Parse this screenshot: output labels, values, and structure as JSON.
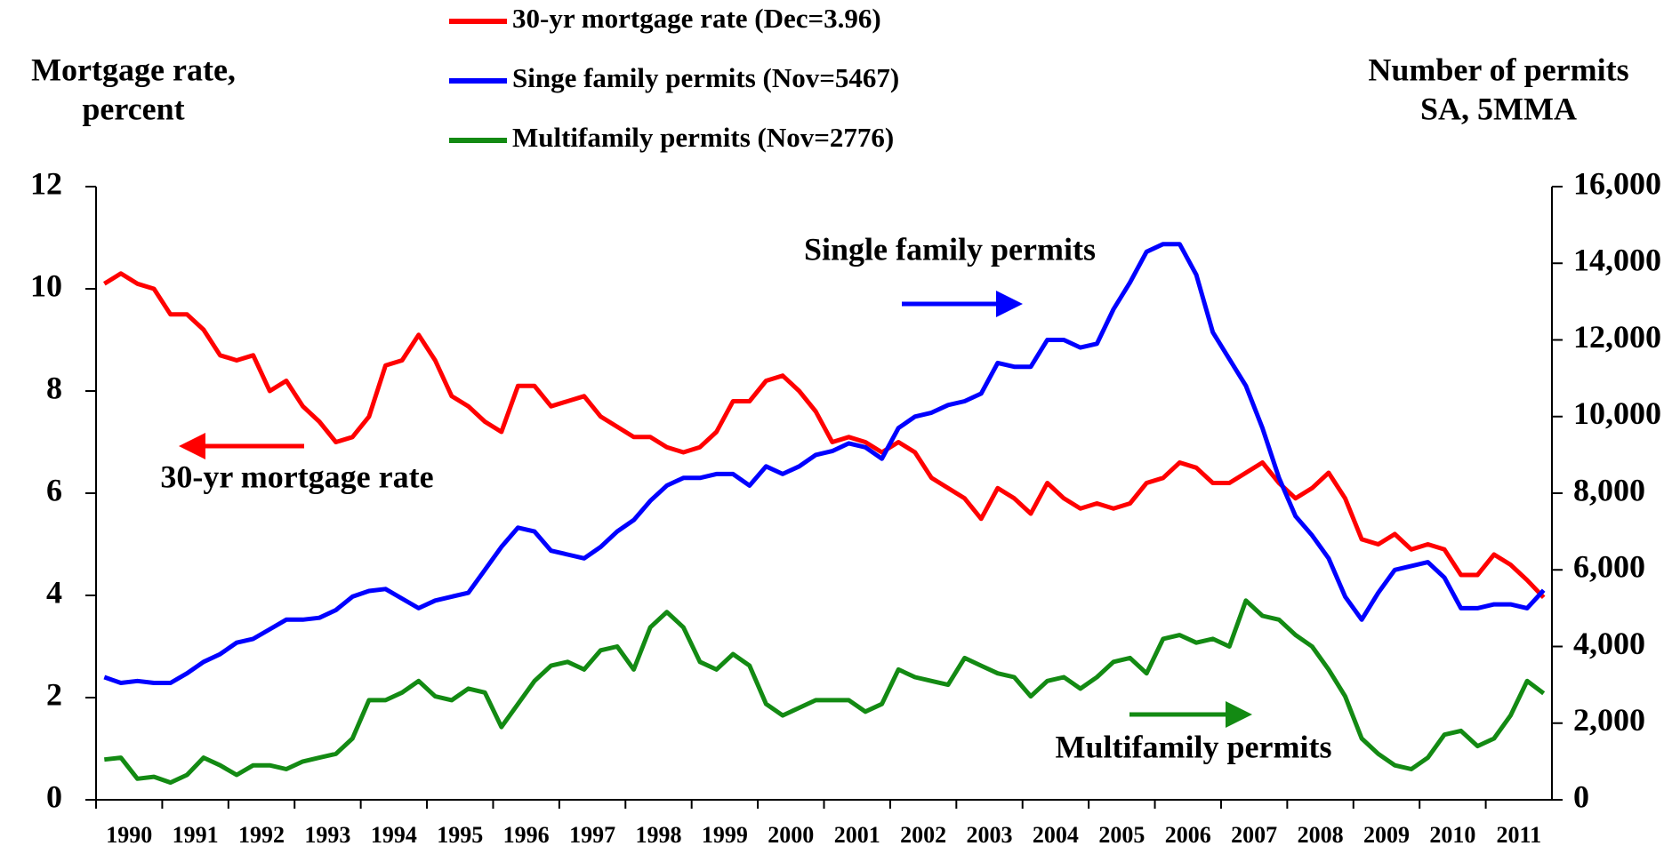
{
  "chart_data": {
    "type": "line",
    "ylabel": [
      "Mortgage rate,",
      "percent"
    ],
    "y2label": [
      "Number of permits",
      "SA,  5MMA"
    ],
    "annotations": [
      "Single family permits",
      "30-yr mortgage rate",
      "Multifamily permits"
    ],
    "categories": [
      "1990",
      null,
      null,
      null,
      "1991",
      null,
      null,
      null,
      "1992",
      null,
      null,
      null,
      "1993",
      null,
      null,
      null,
      "1994",
      null,
      null,
      null,
      "1995",
      null,
      null,
      null,
      "1996",
      null,
      null,
      null,
      "1997",
      null,
      null,
      null,
      "1998",
      null,
      null,
      null,
      "1999",
      null,
      null,
      null,
      "2000",
      null,
      null,
      null,
      "2001",
      null,
      null,
      null,
      "2002",
      null,
      null,
      null,
      "2003",
      null,
      null,
      null,
      "2004",
      null,
      null,
      null,
      "2005",
      null,
      null,
      null,
      "2006",
      null,
      null,
      null,
      "2007",
      null,
      null,
      null,
      "2008",
      null,
      null,
      null,
      "2009",
      null,
      null,
      null,
      "2010",
      null,
      null,
      null,
      "2011",
      null,
      null,
      null
    ],
    "ylim": [
      0,
      12
    ],
    "yticks": [
      0,
      2,
      4,
      6,
      8,
      10,
      12
    ],
    "y2lim": [
      0,
      16000
    ],
    "y2ticks": [
      0,
      {
        "value": 2000,
        "label": "2,000"
      },
      {
        "value": 4000,
        "label": "4,000"
      },
      {
        "value": 6000,
        "label": "6,000"
      },
      {
        "value": 8000,
        "label": "8,000"
      },
      {
        "value": 10000,
        "label": "10,000"
      },
      {
        "value": 12000,
        "label": "12,000"
      },
      {
        "value": 14000,
        "label": "14,000"
      },
      {
        "value": 16000,
        "label": "16,000"
      }
    ],
    "series": [
      {
        "name": "30-yr mortgage rate (Dec=3.96)",
        "color": "#ff0000",
        "values": [
          10.1,
          10.3,
          10.1,
          10.0,
          9.5,
          9.5,
          9.2,
          8.7,
          8.6,
          8.7,
          8.0,
          8.2,
          7.7,
          7.4,
          7.0,
          7.1,
          7.5,
          8.5,
          8.6,
          9.1,
          8.6,
          7.9,
          7.7,
          7.4,
          7.2,
          8.1,
          8.1,
          7.7,
          7.8,
          7.9,
          7.5,
          7.3,
          7.1,
          7.1,
          6.9,
          6.8,
          6.9,
          7.2,
          7.8,
          7.8,
          8.2,
          8.3,
          8.0,
          7.6,
          7.0,
          7.1,
          7.0,
          6.8,
          7.0,
          6.8,
          6.3,
          6.1,
          5.9,
          5.5,
          6.1,
          5.9,
          5.6,
          6.2,
          5.9,
          5.7,
          5.8,
          5.7,
          5.8,
          6.2,
          6.3,
          6.6,
          6.5,
          6.2,
          6.2,
          6.4,
          6.6,
          6.2,
          5.9,
          6.1,
          6.4,
          5.9,
          5.1,
          5.0,
          5.2,
          4.9,
          5.0,
          4.9,
          4.4,
          4.4,
          4.8,
          4.6,
          4.3,
          3.96
        ]
      },
      {
        "name": "Singe family permits (Nov=5467)",
        "color": "#0000ff",
        "axis": "y2",
        "values": [
          3200,
          3050,
          3100,
          3050,
          3050,
          3300,
          3600,
          3800,
          4100,
          4200,
          4450,
          4700,
          4700,
          4750,
          4950,
          5300,
          5450,
          5500,
          5250,
          5000,
          5200,
          5300,
          5400,
          6000,
          6600,
          7100,
          7000,
          6500,
          6400,
          6300,
          6600,
          7000,
          7300,
          7800,
          8200,
          8400,
          8400,
          8500,
          8500,
          8200,
          8700,
          8500,
          8700,
          9000,
          9100,
          9300,
          9200,
          8900,
          9700,
          10000,
          10100,
          10300,
          10400,
          10600,
          11400,
          11300,
          11300,
          12000,
          12000,
          11800,
          11900,
          12800,
          13500,
          14300,
          14500,
          14500,
          13700,
          12200,
          11500,
          10800,
          9700,
          8400,
          7400,
          6900,
          6300,
          5300,
          4700,
          5400,
          6000,
          6100,
          6200,
          5800,
          5000,
          5000,
          5100,
          5100,
          5000,
          5467
        ]
      },
      {
        "name": "Multifamily permits (Nov=2776)",
        "color": "#138a13",
        "axis": "y2",
        "values": [
          1050,
          1100,
          550,
          600,
          450,
          650,
          1100,
          900,
          650,
          900,
          900,
          800,
          1000,
          1100,
          1200,
          1600,
          2600,
          2600,
          2800,
          3100,
          2700,
          2600,
          2900,
          2800,
          1900,
          2500,
          3100,
          3500,
          3600,
          3400,
          3900,
          4000,
          3400,
          4500,
          4900,
          4500,
          3600,
          3400,
          3800,
          3500,
          2500,
          2200,
          2400,
          2600,
          2600,
          2600,
          2300,
          2500,
          3400,
          3200,
          3100,
          3000,
          3700,
          3500,
          3300,
          3200,
          2700,
          3100,
          3200,
          2900,
          3200,
          3600,
          3700,
          3300,
          4200,
          4300,
          4100,
          4200,
          4000,
          5200,
          4800,
          4700,
          4300,
          4000,
          3400,
          2700,
          1600,
          1200,
          900,
          800,
          1100,
          1700,
          1800,
          1400,
          1600,
          2200,
          3100,
          2776
        ]
      }
    ]
  }
}
